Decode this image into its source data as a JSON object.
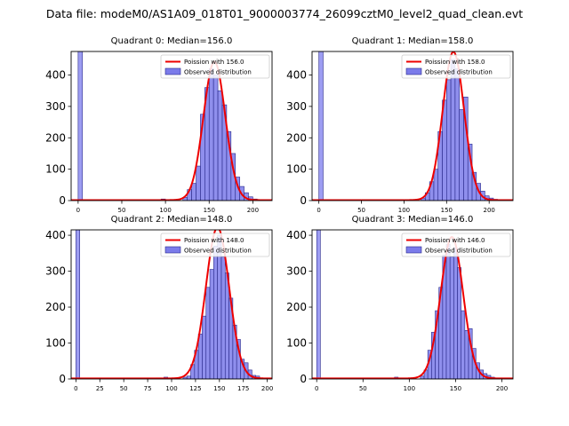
{
  "figure_title": "Data file: modeM0/AS1A09_018T01_9000003774_26099cztM0_level2_quad_clean.evt",
  "colors": {
    "hist_fill": "#7b7bea",
    "hist_edge": "#2a2a8a",
    "curve": "#ee0000",
    "spike": "#8c8cf0"
  },
  "chart_data": [
    {
      "type": "bar",
      "title": "Quadrant 0: Median=156.0",
      "median": 156.0,
      "legend": {
        "placement": "top-right",
        "curve_label": "Poission with 156.0",
        "hist_label": "Observed distribution"
      },
      "xlim": [
        -8,
        222
      ],
      "ylim": [
        0,
        475
      ],
      "xticks": [
        0,
        50,
        100,
        150,
        200
      ],
      "yticks": [
        0,
        100,
        200,
        300,
        400
      ],
      "bin_width": 5,
      "spike": {
        "x": 0,
        "value": 475
      },
      "bins_start": [
        95,
        120,
        125,
        130,
        135,
        140,
        145,
        150,
        155,
        160,
        165,
        170,
        175,
        180,
        185,
        190,
        195,
        200,
        205
      ],
      "values": [
        5,
        10,
        35,
        55,
        110,
        275,
        360,
        420,
        400,
        350,
        305,
        220,
        150,
        75,
        45,
        25,
        12,
        5,
        2
      ]
    },
    {
      "type": "bar",
      "title": "Quadrant 1: Median=158.0",
      "median": 158.0,
      "legend": {
        "placement": "top-right",
        "curve_label": "Poission with 158.0",
        "hist_label": "Observed distribution"
      },
      "xlim": [
        -8,
        228
      ],
      "ylim": [
        0,
        475
      ],
      "xticks": [
        0,
        50,
        100,
        150,
        200
      ],
      "yticks": [
        0,
        100,
        200,
        300,
        400
      ],
      "bin_width": 5,
      "spike": {
        "x": 0,
        "value": 475
      },
      "bins_start": [
        120,
        125,
        130,
        135,
        140,
        145,
        150,
        155,
        160,
        165,
        170,
        175,
        180,
        185,
        190,
        195,
        200,
        205,
        210
      ],
      "values": [
        8,
        25,
        60,
        100,
        220,
        320,
        385,
        450,
        420,
        290,
        330,
        180,
        90,
        55,
        30,
        15,
        8,
        4,
        2
      ]
    },
    {
      "type": "bar",
      "title": "Quadrant 2: Median=148.0",
      "median": 148.0,
      "legend": {
        "placement": "top-right",
        "curve_label": "Poission with 148.0",
        "hist_label": "Observed distribution"
      },
      "xlim": [
        -5,
        205
      ],
      "ylim": [
        0,
        415
      ],
      "xticks": [
        0,
        25,
        50,
        75,
        100,
        125,
        150,
        175,
        200
      ],
      "yticks": [
        0,
        100,
        200,
        300,
        400
      ],
      "bin_width": 4,
      "spike": {
        "x": 0,
        "value": 415
      },
      "bins_start": [
        84,
        92,
        96,
        112,
        116,
        120,
        124,
        128,
        132,
        136,
        140,
        144,
        148,
        152,
        156,
        160,
        164,
        168,
        172,
        176,
        180,
        184,
        188,
        192,
        196
      ],
      "values": [
        3,
        5,
        3,
        5,
        8,
        40,
        80,
        125,
        175,
        255,
        305,
        370,
        400,
        340,
        295,
        225,
        150,
        110,
        55,
        45,
        25,
        10,
        8,
        3,
        2
      ]
    },
    {
      "type": "bar",
      "title": "Quadrant 3: Median=146.0",
      "median": 146.0,
      "legend": {
        "placement": "top-right",
        "curve_label": "Poission with 146.0",
        "hist_label": "Observed distribution"
      },
      "xlim": [
        -5,
        212
      ],
      "ylim": [
        0,
        415
      ],
      "xticks": [
        0,
        50,
        100,
        150,
        200
      ],
      "yticks": [
        0,
        100,
        200,
        300,
        400
      ],
      "bin_width": 4,
      "spike": {
        "x": 0,
        "value": 415
      },
      "bins_start": [
        84,
        112,
        116,
        120,
        124,
        128,
        132,
        136,
        140,
        144,
        148,
        152,
        156,
        160,
        164,
        168,
        172,
        176,
        180,
        184,
        188,
        192
      ],
      "values": [
        5,
        8,
        25,
        80,
        130,
        190,
        255,
        345,
        375,
        340,
        365,
        310,
        190,
        135,
        140,
        85,
        45,
        25,
        15,
        10,
        5,
        2
      ]
    }
  ]
}
